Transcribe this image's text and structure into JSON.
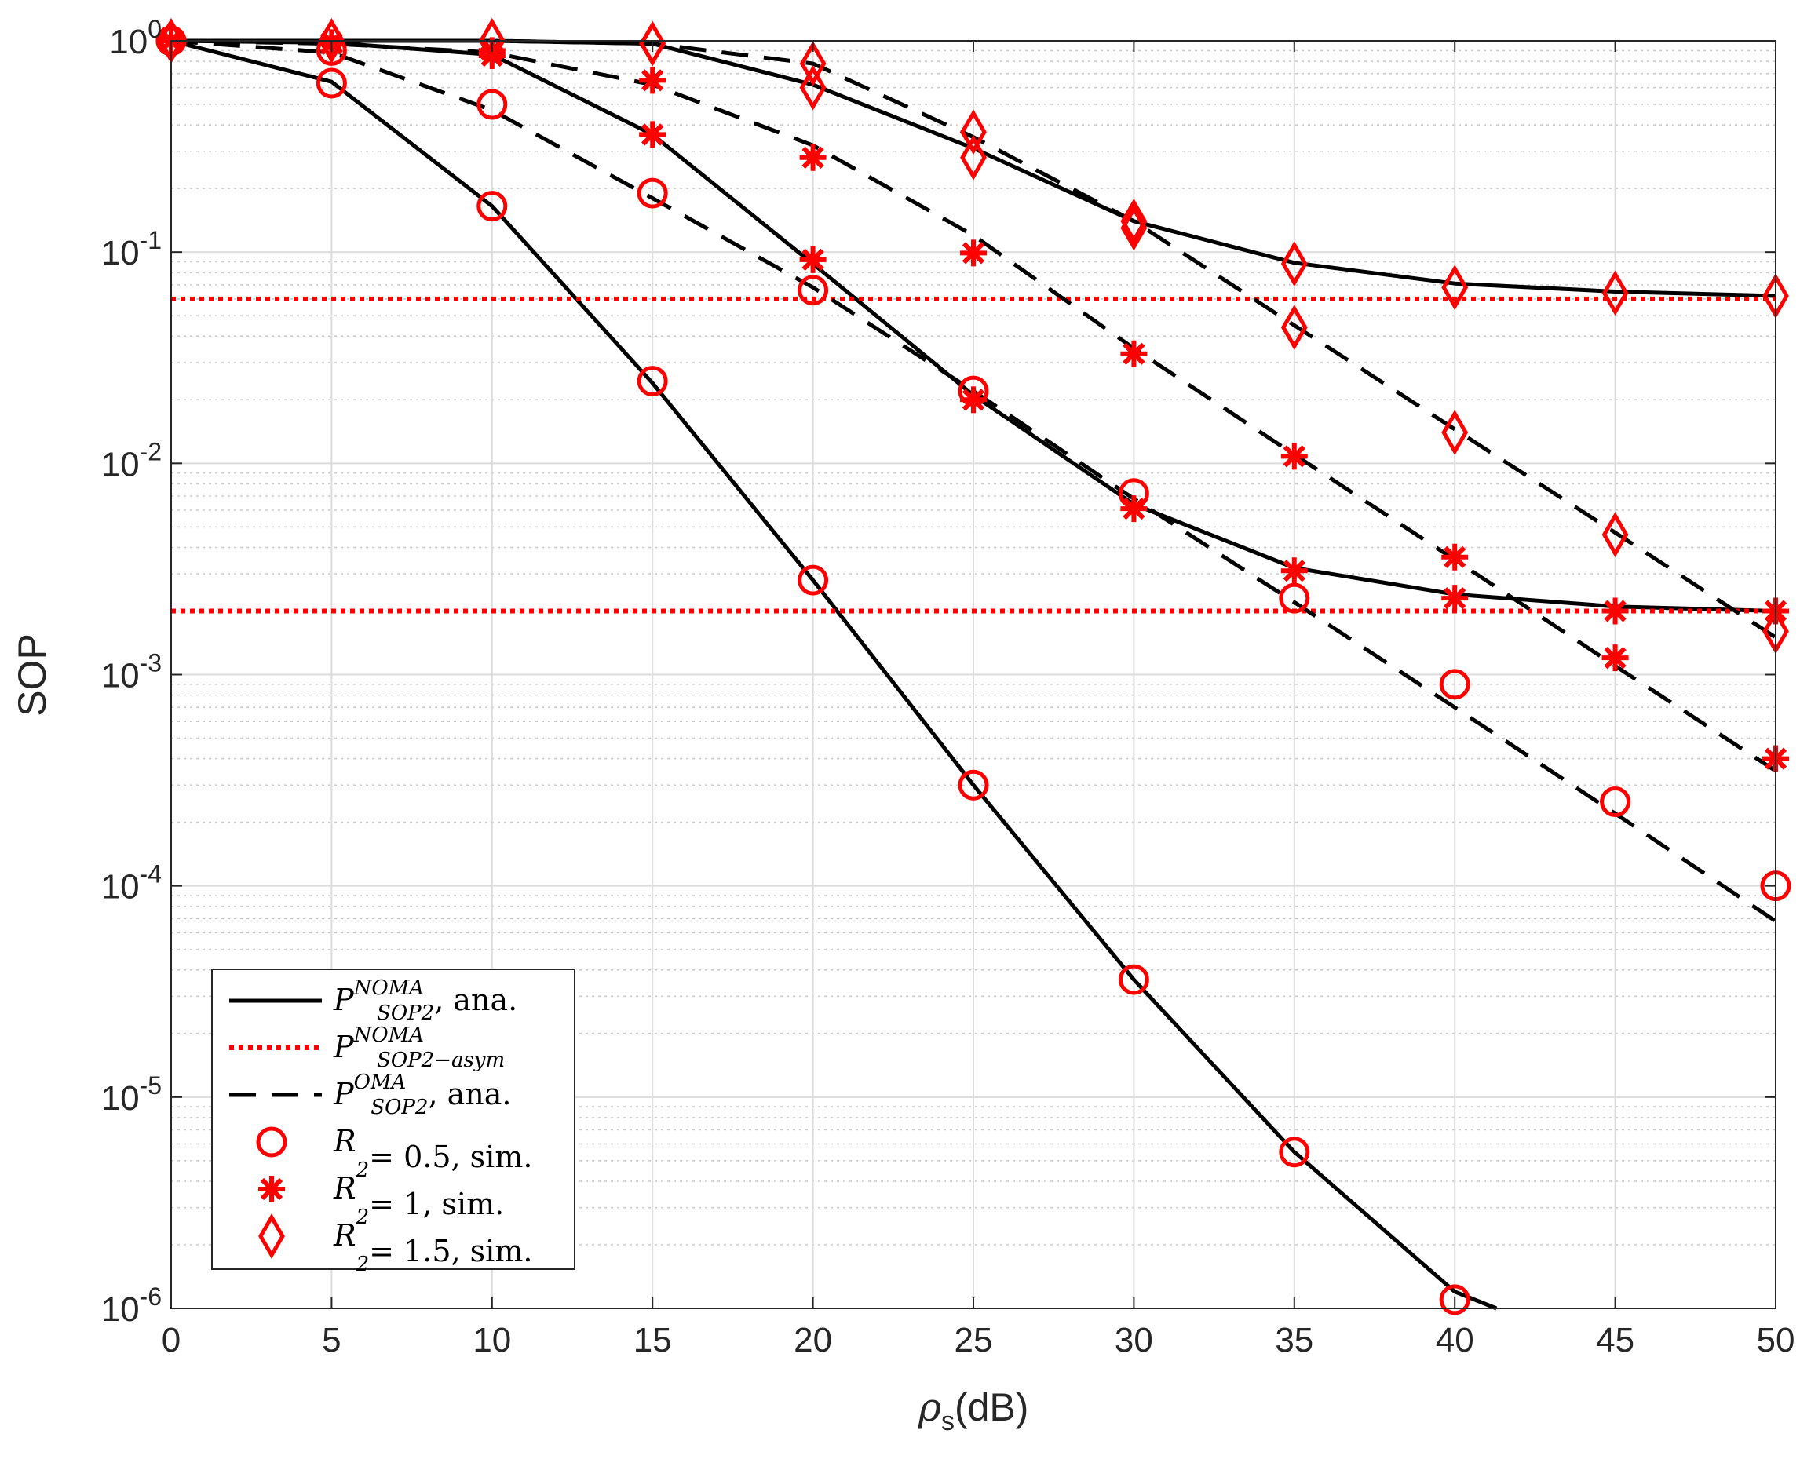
{
  "chart_data": {
    "type": "line",
    "xlabel_main": "ρ",
    "xlabel_sub": "s",
    "xlabel_unit": "(dB)",
    "ylabel": "SOP",
    "xlim": [
      0,
      50
    ],
    "ylim": [
      1e-06,
      1
    ],
    "yscale": "log",
    "grid": true,
    "legend_position": "lower-left",
    "x_ticks": [
      "0",
      "5",
      "10",
      "15",
      "20",
      "25",
      "30",
      "35",
      "40",
      "45",
      "50"
    ],
    "y_ticks": [
      {
        "base": "10",
        "exp": "0",
        "value": 1
      },
      {
        "base": "10",
        "exp": "-1",
        "value": 0.1
      },
      {
        "base": "10",
        "exp": "-2",
        "value": 0.01
      },
      {
        "base": "10",
        "exp": "-3",
        "value": 0.001
      },
      {
        "base": "10",
        "exp": "-4",
        "value": 0.0001
      },
      {
        "base": "10",
        "exp": "-5",
        "value": 1e-05
      },
      {
        "base": "10",
        "exp": "-6",
        "value": 1e-06
      }
    ],
    "x": [
      0,
      5,
      10,
      15,
      20,
      25,
      30,
      35,
      40,
      45,
      50
    ],
    "lines": [
      {
        "style": "solid",
        "color": "#000000",
        "group": "R2=0.5",
        "x": [
          0,
          5,
          10,
          15,
          20,
          25,
          30,
          35,
          40,
          41.3
        ],
        "values": [
          1,
          0.64,
          0.165,
          0.024,
          0.0028,
          0.0003,
          3.6e-05,
          5.5e-06,
          1.2e-06,
          1e-06
        ]
      },
      {
        "style": "solid",
        "color": "#000000",
        "group": "R2=1",
        "x": [
          0,
          5,
          10,
          15,
          20,
          25,
          30,
          35,
          40,
          45,
          50
        ],
        "values": [
          1,
          0.98,
          0.86,
          0.36,
          0.088,
          0.021,
          0.0064,
          0.0032,
          0.0024,
          0.0021,
          0.002
        ]
      },
      {
        "style": "solid",
        "color": "#000000",
        "group": "R2=1.5",
        "x": [
          0,
          5,
          10,
          15,
          20,
          25,
          30,
          35,
          40,
          45,
          50
        ],
        "values": [
          1,
          1,
          1,
          0.97,
          0.62,
          0.31,
          0.14,
          0.089,
          0.071,
          0.065,
          0.062
        ]
      },
      {
        "style": "dotted",
        "color": "#ff0000",
        "group": "asym-1",
        "x": [
          0,
          50
        ],
        "values": [
          0.06,
          0.06
        ]
      },
      {
        "style": "dotted",
        "color": "#ff0000",
        "group": "asym-2",
        "x": [
          0,
          50
        ],
        "values": [
          0.002,
          0.002
        ]
      },
      {
        "style": "dashed",
        "color": "#000000",
        "group": "R2=0.5",
        "x": [
          0,
          5,
          10,
          15,
          20,
          25,
          30,
          35,
          40,
          45,
          50
        ],
        "values": [
          1,
          0.88,
          0.47,
          0.18,
          0.068,
          0.022,
          0.0068,
          0.0022,
          0.0007,
          0.00022,
          6.8e-05
        ]
      },
      {
        "style": "dashed",
        "color": "#000000",
        "group": "R2=1",
        "x": [
          0,
          5,
          10,
          15,
          20,
          25,
          30,
          35,
          40,
          45,
          50
        ],
        "values": [
          1,
          0.97,
          0.88,
          0.62,
          0.32,
          0.12,
          0.035,
          0.011,
          0.0035,
          0.0011,
          0.00035
        ]
      },
      {
        "style": "dashed",
        "color": "#000000",
        "group": "R2=1.5",
        "x": [
          0,
          5,
          10,
          15,
          20,
          25,
          30,
          35,
          40,
          45,
          50
        ],
        "values": [
          1,
          1,
          1,
          0.97,
          0.78,
          0.35,
          0.14,
          0.045,
          0.0145,
          0.0047,
          0.0015
        ]
      }
    ],
    "markers": [
      {
        "shape": "circle",
        "color": "#ff0000",
        "x": [
          0,
          5,
          10,
          15,
          20,
          25,
          30,
          35,
          40,
          45,
          50
        ],
        "values": [
          1,
          0.63,
          0.165,
          0.0245,
          0.0028,
          0.0003,
          3.6e-05,
          5.5e-06,
          1.1e-06,
          null,
          null
        ]
      },
      {
        "shape": "circle",
        "color": "#ff0000",
        "x": [
          0,
          5,
          10,
          15,
          20,
          25,
          30,
          35,
          40,
          45,
          50
        ],
        "values": [
          1,
          0.9,
          0.5,
          0.19,
          0.066,
          0.022,
          0.0072,
          0.0023,
          0.0009,
          0.00025,
          0.0001
        ]
      },
      {
        "shape": "star",
        "color": "#ff0000",
        "x": [
          0,
          5,
          10,
          15,
          20,
          25,
          30,
          35,
          40,
          45,
          50
        ],
        "values": [
          1,
          0.97,
          0.85,
          0.36,
          0.092,
          0.02,
          0.0061,
          0.0031,
          0.0023,
          0.002,
          0.002
        ]
      },
      {
        "shape": "star",
        "color": "#ff0000",
        "x": [
          0,
          5,
          10,
          15,
          20,
          25,
          30,
          35,
          40,
          45,
          50
        ],
        "values": [
          1,
          0.98,
          0.9,
          0.65,
          0.28,
          0.099,
          0.033,
          0.0108,
          0.0036,
          0.0012,
          0.0004
        ]
      },
      {
        "shape": "diamond",
        "color": "#ff0000",
        "x": [
          0,
          5,
          10,
          15,
          20,
          25,
          30,
          35,
          40,
          45,
          50
        ],
        "values": [
          1,
          1,
          1,
          0.97,
          0.6,
          0.28,
          0.13,
          0.088,
          0.068,
          0.064,
          0.062
        ]
      },
      {
        "shape": "diamond",
        "color": "#ff0000",
        "x": [
          0,
          5,
          10,
          15,
          20,
          25,
          30,
          35,
          40,
          45,
          50
        ],
        "values": [
          1,
          1,
          1,
          0.97,
          0.78,
          0.37,
          0.14,
          0.044,
          0.014,
          0.0046,
          0.0016
        ]
      }
    ],
    "legend": [
      {
        "line": "solid",
        "marker": null,
        "sym": "P",
        "sup": "NOMA",
        "sub": "SOP2",
        "tail": ", ana."
      },
      {
        "line": "dotted",
        "marker": null,
        "sym": "P",
        "sup": "NOMA",
        "sub": "SOP2−asym",
        "tail": ""
      },
      {
        "line": "dashed",
        "marker": null,
        "sym": "P",
        "sup": "OMA",
        "sub": "SOP2",
        "tail": ", ana."
      },
      {
        "line": null,
        "marker": "circle",
        "sym": "R",
        "sup": "",
        "sub": "2",
        "tail": "= 0.5, sim."
      },
      {
        "line": null,
        "marker": "star",
        "sym": "R",
        "sup": "",
        "sub": "2",
        "tail": "= 1, sim."
      },
      {
        "line": null,
        "marker": "diamond",
        "sym": "R",
        "sup": "",
        "sub": "2",
        "tail": "= 1.5, sim."
      }
    ]
  }
}
